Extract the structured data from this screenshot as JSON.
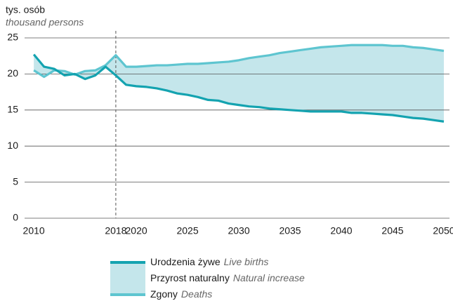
{
  "chart_data": {
    "type": "line",
    "ylabel": "tys. osób",
    "ylabel_en": "thousand persons",
    "x": [
      2010,
      2011,
      2012,
      2013,
      2014,
      2015,
      2016,
      2017,
      2018,
      2019,
      2020,
      2021,
      2022,
      2023,
      2024,
      2025,
      2026,
      2027,
      2028,
      2029,
      2030,
      2031,
      2032,
      2033,
      2034,
      2035,
      2036,
      2037,
      2038,
      2039,
      2040,
      2041,
      2042,
      2043,
      2044,
      2045,
      2046,
      2047,
      2048,
      2049,
      2050
    ],
    "series": [
      {
        "name": "Urodzenia żywe",
        "name_en": "Live births",
        "color": "#14a3b0",
        "values": [
          22.7,
          21.0,
          20.7,
          19.8,
          20.0,
          19.3,
          19.8,
          21.0,
          19.8,
          18.5,
          18.3,
          18.2,
          18.0,
          17.7,
          17.3,
          17.1,
          16.8,
          16.4,
          16.3,
          15.9,
          15.7,
          15.5,
          15.4,
          15.2,
          15.1,
          15.0,
          14.9,
          14.8,
          14.8,
          14.8,
          14.8,
          14.6,
          14.6,
          14.5,
          14.4,
          14.3,
          14.1,
          13.9,
          13.8,
          13.6,
          13.4
        ]
      },
      {
        "name": "Zgony",
        "name_en": "Deaths",
        "color": "#5ec5d0",
        "values": [
          20.5,
          19.6,
          20.5,
          20.4,
          19.9,
          20.4,
          20.5,
          21.2,
          22.6,
          21.0,
          21.0,
          21.1,
          21.2,
          21.2,
          21.3,
          21.4,
          21.4,
          21.5,
          21.6,
          21.7,
          21.9,
          22.2,
          22.4,
          22.6,
          22.9,
          23.1,
          23.3,
          23.5,
          23.7,
          23.8,
          23.9,
          24.0,
          24.0,
          24.0,
          24.0,
          23.9,
          23.9,
          23.7,
          23.6,
          23.4,
          23.2
        ]
      }
    ],
    "area": {
      "name": "Przyrost naturalny",
      "name_en": "Natural increase",
      "color": "#c4e6eb"
    },
    "vline": 2018,
    "xlim": [
      2009.1,
      2050.55
    ],
    "xticks": [
      2010,
      2018,
      2020,
      2025,
      2030,
      2035,
      2040,
      2045,
      2050
    ],
    "ylim": [
      0,
      25
    ],
    "yticks": [
      0,
      5,
      10,
      15,
      20,
      25
    ],
    "grid": true
  }
}
